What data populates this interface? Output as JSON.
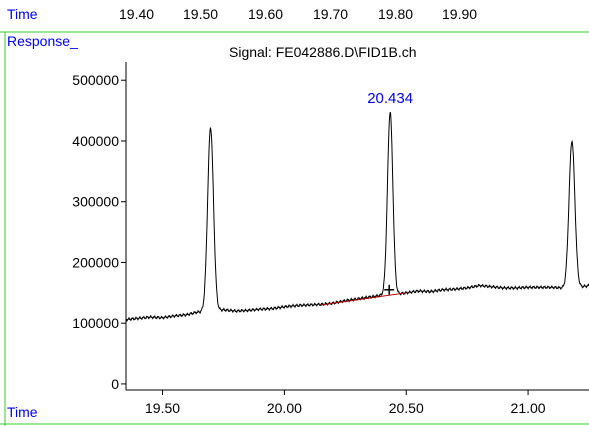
{
  "window": {
    "time_label": "Time",
    "response_label": "Response_",
    "signal_title": "Signal: FE042886.D\\FID1B.ch",
    "top_time_ticks": [
      "19.40",
      "19.50",
      "19.60",
      "19.70",
      "19.80",
      "19.90"
    ]
  },
  "colors": {
    "frame": "#33cc33",
    "label_text": "#0000ee",
    "trace": "#000000",
    "baseline": "#aa0000",
    "peak_label": "#0000ee"
  },
  "chart_data": {
    "type": "line",
    "title": "Signal: FE042886.D\\FID1B.ch",
    "xlabel": "Time",
    "ylabel": "Response_",
    "xlim": [
      19.35,
      21.25
    ],
    "ylim": [
      -10000,
      530000
    ],
    "x_ticks": [
      19.5,
      20.0,
      20.5,
      21.0
    ],
    "x_tick_labels": [
      "19.50",
      "20.00",
      "20.50",
      "21.00"
    ],
    "y_ticks": [
      0,
      100000,
      200000,
      300000,
      400000,
      500000
    ],
    "y_tick_labels": [
      "0",
      "100000",
      "200000",
      "300000",
      "400000",
      "500000"
    ],
    "baseline_points": [
      [
        19.35,
        106000
      ],
      [
        19.4,
        108000
      ],
      [
        19.45,
        110000
      ],
      [
        19.5,
        109000
      ],
      [
        19.55,
        112000
      ],
      [
        19.6,
        114000
      ],
      [
        19.64,
        118000
      ],
      [
        19.75,
        122000
      ],
      [
        19.8,
        120000
      ],
      [
        19.85,
        121000
      ],
      [
        19.9,
        123000
      ],
      [
        19.95,
        124000
      ],
      [
        20.0,
        127000
      ],
      [
        20.05,
        129000
      ],
      [
        20.1,
        130000
      ],
      [
        20.15,
        131000
      ],
      [
        20.2,
        133000
      ],
      [
        20.25,
        137000
      ],
      [
        20.3,
        140000
      ],
      [
        20.35,
        143000
      ],
      [
        20.4,
        146000
      ],
      [
        20.45,
        147000
      ],
      [
        20.5,
        150000
      ],
      [
        20.55,
        153000
      ],
      [
        20.6,
        152000
      ],
      [
        20.65,
        155000
      ],
      [
        20.7,
        156000
      ],
      [
        20.75,
        158000
      ],
      [
        20.8,
        162000
      ],
      [
        20.85,
        160000
      ],
      [
        20.9,
        158000
      ],
      [
        20.95,
        158000
      ],
      [
        21.0,
        159000
      ],
      [
        21.05,
        159000
      ],
      [
        21.1,
        159000
      ],
      [
        21.14,
        158000
      ],
      [
        21.22,
        160000
      ],
      [
        21.25,
        162000
      ]
    ],
    "peaks": [
      {
        "rt": 19.697,
        "apex": 422000,
        "width": 0.012
      },
      {
        "rt": 20.434,
        "apex": 448000,
        "width": 0.011,
        "label": "20.434"
      },
      {
        "rt": 21.18,
        "apex": 400000,
        "width": 0.012
      }
    ],
    "integration_baseline": {
      "start": [
        20.15,
        130000
      ],
      "end": [
        20.5,
        150000
      ]
    },
    "marker": {
      "x": 20.43,
      "y": 155000,
      "symbol": "+"
    }
  }
}
